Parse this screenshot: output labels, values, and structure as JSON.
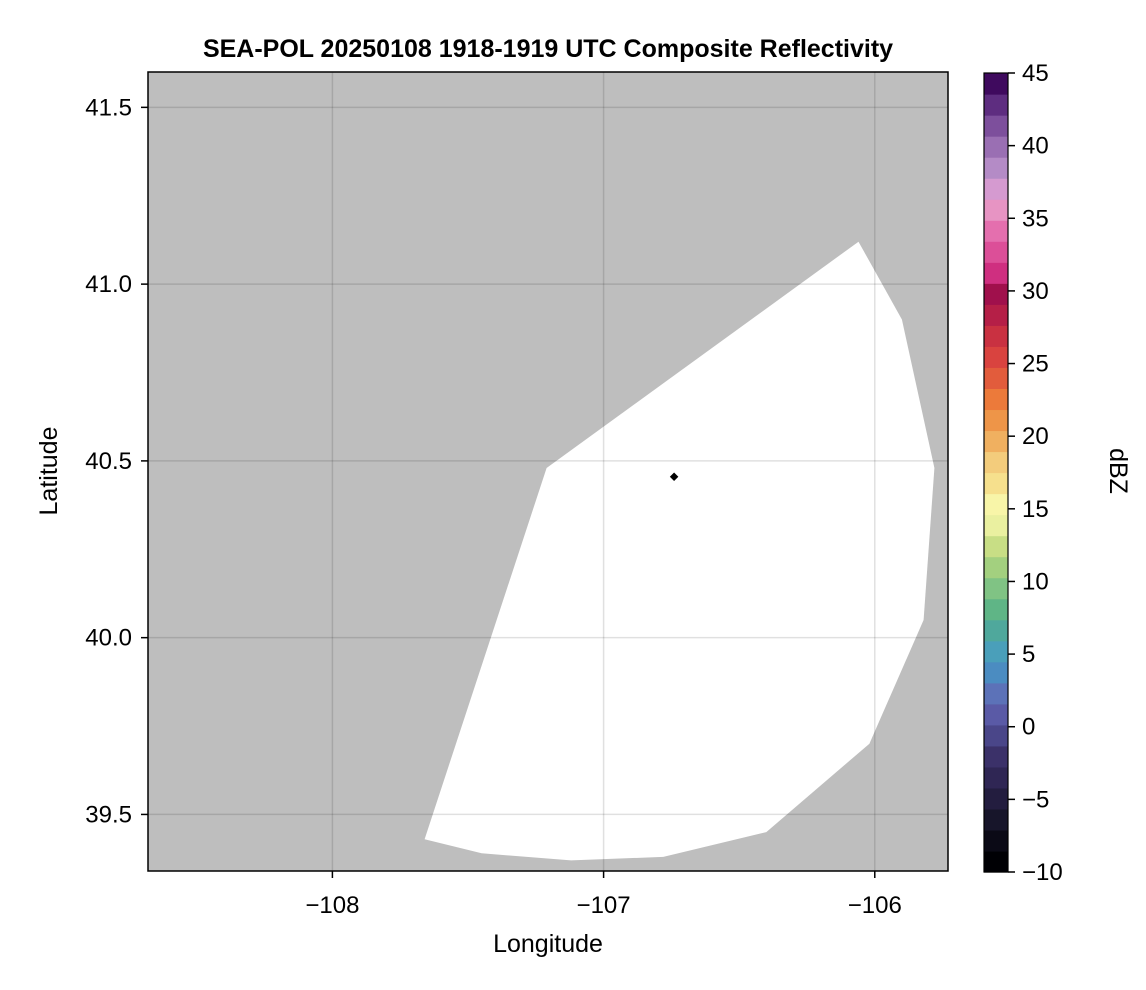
{
  "chart_data": {
    "type": "heatmap",
    "title": "SEA-POL 20250108 1918-1919 UTC Composite Reflectivity",
    "xlabel": "Longitude",
    "ylabel": "Latitude",
    "xlim": [
      -108.68,
      -105.73
    ],
    "ylim": [
      39.34,
      41.6
    ],
    "xticks": [
      -108,
      -107,
      -106
    ],
    "xtick_labels": [
      "−108",
      "−107",
      "−106"
    ],
    "yticks": [
      39.5,
      40.0,
      40.5,
      41.0,
      41.5
    ],
    "ytick_labels": [
      "39.5",
      "40.0",
      "40.5",
      "41.0",
      "41.5"
    ],
    "grid": true,
    "background_color": "#bebebe",
    "coverage_color": "#ffffff",
    "radar_site": {
      "lon": -106.74,
      "lat": 40.455,
      "marker_color": "#000000"
    },
    "coverage_boundary": [
      [
        -107.66,
        39.43
      ],
      [
        -107.21,
        40.48
      ],
      [
        -106.06,
        41.12
      ],
      [
        -105.9,
        40.9
      ],
      [
        -105.78,
        40.48
      ],
      [
        -105.82,
        40.05
      ],
      [
        -106.02,
        39.7
      ],
      [
        -106.4,
        39.45
      ],
      [
        -106.78,
        39.38
      ],
      [
        -107.12,
        39.37
      ],
      [
        -107.45,
        39.39
      ]
    ],
    "colorbar": {
      "label": "dBZ",
      "min": -10,
      "max": 45,
      "step": 2.5,
      "ticks": [
        -10,
        -5,
        0,
        5,
        10,
        15,
        20,
        25,
        30,
        35,
        40,
        45
      ],
      "tick_labels": [
        "−10",
        "−5",
        "0",
        "5",
        "10",
        "15",
        "20",
        "25",
        "30",
        "35",
        "40",
        "45"
      ],
      "colors": [
        "#000004",
        "#0b0a16",
        "#17152a",
        "#231d3f",
        "#2f2654",
        "#3b3169",
        "#4a4689",
        "#5a5aa6",
        "#5c72b8",
        "#4b8cc1",
        "#4a9fba",
        "#4fa89c",
        "#5fb586",
        "#80c384",
        "#a3d07f",
        "#c8de85",
        "#eaf0a0",
        "#f8f5a8",
        "#f6e08d",
        "#f3cc7c",
        "#f0b060",
        "#ee9548",
        "#ec7a3a",
        "#e25c3c",
        "#d9433f",
        "#c93141",
        "#b51f47",
        "#a0104c",
        "#cf2f80",
        "#dc4f98",
        "#e46fae",
        "#e794c3",
        "#d59ad0",
        "#b48bc6",
        "#9a6fb3",
        "#7d4f9c",
        "#5e2d80",
        "#3f0a5e"
      ]
    }
  }
}
